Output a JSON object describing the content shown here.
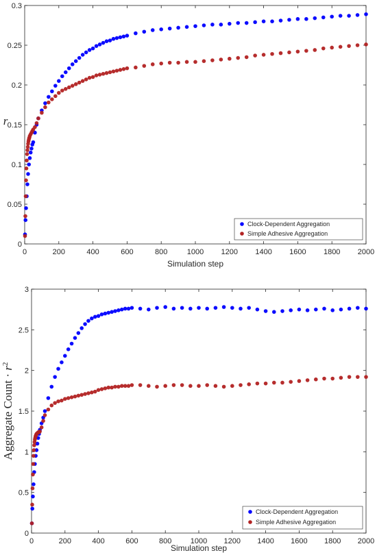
{
  "chart_data": [
    {
      "type": "scatter",
      "xlabel": "Simulation step",
      "ylabel": "r",
      "xlim": [
        0,
        2000
      ],
      "ylim": [
        0,
        0.3
      ],
      "xticks": [
        "0",
        "200",
        "400",
        "600",
        "800",
        "1000",
        "1200",
        "1400",
        "1600",
        "1800",
        "2000"
      ],
      "yticks": [
        "0",
        "0.05",
        "0.1",
        "0.15",
        "0.2",
        "0.25",
        "0.3"
      ],
      "grid": false,
      "legend_position": "bottom-right",
      "series": [
        {
          "name": "Clock-Dependent Aggregation",
          "color": "#0000ff",
          "x": [
            2,
            5,
            8,
            12,
            16,
            20,
            25,
            30,
            35,
            40,
            45,
            50,
            60,
            70,
            80,
            100,
            120,
            140,
            160,
            180,
            200,
            220,
            240,
            260,
            280,
            300,
            320,
            340,
            360,
            380,
            400,
            420,
            440,
            460,
            480,
            500,
            520,
            540,
            560,
            580,
            600,
            650,
            700,
            750,
            800,
            850,
            900,
            950,
            1000,
            1050,
            1100,
            1150,
            1200,
            1250,
            1300,
            1350,
            1400,
            1450,
            1500,
            1550,
            1600,
            1650,
            1700,
            1750,
            1800,
            1850,
            1900,
            1950,
            2000
          ],
          "y": [
            0.012,
            0.03,
            0.045,
            0.06,
            0.075,
            0.088,
            0.1,
            0.108,
            0.115,
            0.12,
            0.125,
            0.128,
            0.14,
            0.15,
            0.158,
            0.168,
            0.177,
            0.185,
            0.192,
            0.199,
            0.205,
            0.211,
            0.216,
            0.221,
            0.226,
            0.23,
            0.234,
            0.238,
            0.241,
            0.244,
            0.246,
            0.249,
            0.251,
            0.253,
            0.255,
            0.256,
            0.258,
            0.259,
            0.26,
            0.261,
            0.262,
            0.265,
            0.267,
            0.269,
            0.27,
            0.271,
            0.272,
            0.273,
            0.274,
            0.275,
            0.276,
            0.276,
            0.277,
            0.278,
            0.278,
            0.279,
            0.28,
            0.28,
            0.281,
            0.282,
            0.283,
            0.283,
            0.284,
            0.285,
            0.286,
            0.287,
            0.287,
            0.288,
            0.289
          ]
        },
        {
          "name": "Simple Adhesive Aggregation",
          "color": "#b22222",
          "x": [
            2,
            4,
            6,
            8,
            10,
            12,
            14,
            16,
            18,
            20,
            22,
            24,
            26,
            28,
            30,
            35,
            40,
            45,
            50,
            60,
            70,
            80,
            100,
            120,
            140,
            160,
            180,
            200,
            220,
            240,
            260,
            280,
            300,
            320,
            340,
            360,
            380,
            400,
            420,
            440,
            460,
            480,
            500,
            520,
            540,
            560,
            580,
            600,
            650,
            700,
            750,
            800,
            850,
            900,
            950,
            1000,
            1050,
            1100,
            1150,
            1200,
            1250,
            1300,
            1350,
            1400,
            1450,
            1500,
            1550,
            1600,
            1650,
            1700,
            1750,
            1800,
            1850,
            1900,
            1950,
            2000
          ],
          "y": [
            0.01,
            0.035,
            0.06,
            0.08,
            0.095,
            0.105,
            0.113,
            0.118,
            0.122,
            0.126,
            0.129,
            0.131,
            0.133,
            0.134,
            0.136,
            0.138,
            0.14,
            0.142,
            0.144,
            0.147,
            0.152,
            0.158,
            0.165,
            0.172,
            0.178,
            0.182,
            0.186,
            0.19,
            0.193,
            0.195,
            0.197,
            0.199,
            0.201,
            0.203,
            0.205,
            0.207,
            0.209,
            0.21,
            0.212,
            0.213,
            0.214,
            0.215,
            0.216,
            0.217,
            0.218,
            0.219,
            0.22,
            0.221,
            0.222,
            0.224,
            0.226,
            0.227,
            0.228,
            0.228,
            0.229,
            0.229,
            0.23,
            0.231,
            0.232,
            0.233,
            0.234,
            0.235,
            0.237,
            0.238,
            0.239,
            0.24,
            0.241,
            0.242,
            0.243,
            0.244,
            0.246,
            0.247,
            0.248,
            0.249,
            0.25,
            0.251
          ]
        }
      ]
    },
    {
      "type": "scatter",
      "xlabel": "Simulation step",
      "ylabel": "Aggregate Count · r²",
      "xlim": [
        0,
        2000
      ],
      "ylim": [
        0,
        3
      ],
      "xticks": [
        "0",
        "200",
        "400",
        "600",
        "800",
        "1000",
        "1200",
        "1400",
        "1600",
        "1800",
        "2000"
      ],
      "yticks": [
        "0",
        "0.5",
        "1",
        "1.5",
        "2",
        "2.5",
        "3"
      ],
      "grid": false,
      "legend_position": "bottom-right",
      "series": [
        {
          "name": "Clock-Dependent Aggregation",
          "color": "#0000ff",
          "x": [
            2,
            5,
            8,
            12,
            16,
            20,
            25,
            30,
            35,
            40,
            45,
            50,
            60,
            70,
            80,
            100,
            120,
            140,
            160,
            180,
            200,
            220,
            240,
            260,
            280,
            300,
            320,
            340,
            360,
            380,
            400,
            420,
            440,
            460,
            480,
            500,
            520,
            540,
            560,
            580,
            600,
            650,
            700,
            750,
            800,
            850,
            900,
            950,
            1000,
            1050,
            1100,
            1150,
            1200,
            1250,
            1300,
            1350,
            1400,
            1450,
            1500,
            1550,
            1600,
            1650,
            1700,
            1750,
            1800,
            1850,
            1900,
            1950,
            2000
          ],
          "y": [
            0.12,
            0.3,
            0.45,
            0.6,
            0.75,
            0.85,
            0.95,
            1.02,
            1.1,
            1.17,
            1.22,
            1.27,
            1.35,
            1.42,
            1.5,
            1.66,
            1.8,
            1.92,
            2.02,
            2.1,
            2.18,
            2.26,
            2.33,
            2.4,
            2.46,
            2.52,
            2.57,
            2.61,
            2.64,
            2.66,
            2.67,
            2.69,
            2.7,
            2.71,
            2.72,
            2.73,
            2.74,
            2.75,
            2.76,
            2.76,
            2.77,
            2.76,
            2.75,
            2.77,
            2.78,
            2.76,
            2.77,
            2.76,
            2.77,
            2.76,
            2.77,
            2.78,
            2.77,
            2.76,
            2.77,
            2.75,
            2.73,
            2.72,
            2.73,
            2.74,
            2.75,
            2.74,
            2.75,
            2.76,
            2.74,
            2.75,
            2.76,
            2.77,
            2.76
          ]
        },
        {
          "name": "Simple Adhesive Aggregation",
          "color": "#b22222",
          "x": [
            2,
            4,
            6,
            8,
            10,
            12,
            14,
            16,
            18,
            20,
            22,
            24,
            26,
            28,
            30,
            35,
            40,
            45,
            50,
            60,
            70,
            80,
            100,
            120,
            140,
            160,
            180,
            200,
            220,
            240,
            260,
            280,
            300,
            320,
            340,
            360,
            380,
            400,
            420,
            440,
            460,
            480,
            500,
            520,
            540,
            560,
            580,
            600,
            650,
            700,
            750,
            800,
            850,
            900,
            950,
            1000,
            1050,
            1100,
            1150,
            1200,
            1250,
            1300,
            1350,
            1400,
            1450,
            1500,
            1550,
            1600,
            1650,
            1700,
            1750,
            1800,
            1850,
            1900,
            1950,
            2000
          ],
          "y": [
            0.12,
            0.35,
            0.55,
            0.72,
            0.85,
            0.95,
            1.02,
            1.08,
            1.12,
            1.15,
            1.17,
            1.19,
            1.2,
            1.21,
            1.22,
            1.23,
            1.24,
            1.24,
            1.25,
            1.3,
            1.38,
            1.45,
            1.52,
            1.57,
            1.6,
            1.62,
            1.63,
            1.65,
            1.66,
            1.67,
            1.68,
            1.69,
            1.7,
            1.71,
            1.72,
            1.73,
            1.74,
            1.76,
            1.77,
            1.78,
            1.79,
            1.79,
            1.8,
            1.8,
            1.81,
            1.81,
            1.81,
            1.82,
            1.82,
            1.81,
            1.8,
            1.81,
            1.82,
            1.82,
            1.81,
            1.81,
            1.82,
            1.81,
            1.8,
            1.81,
            1.82,
            1.83,
            1.84,
            1.84,
            1.85,
            1.85,
            1.86,
            1.87,
            1.88,
            1.89,
            1.9,
            1.9,
            1.91,
            1.92,
            1.92,
            1.92
          ]
        }
      ]
    }
  ]
}
